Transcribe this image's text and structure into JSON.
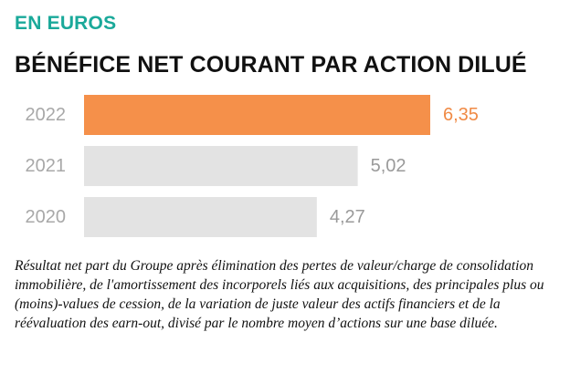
{
  "header": {
    "unit_label": "EN EUROS",
    "title": "BÉNÉFICE NET COURANT PAR ACTION DILUÉ"
  },
  "chart_data": {
    "type": "bar",
    "orientation": "horizontal",
    "title": "BÉNÉFICE NET COURANT PAR ACTION DILUÉ",
    "subtitle": "EN EUROS",
    "categories": [
      "2022",
      "2021",
      "2020"
    ],
    "values": [
      6.35,
      5.02,
      4.27
    ],
    "value_labels": [
      "6,35",
      "5,02",
      "4,27"
    ],
    "xlim": [
      0,
      6.35
    ],
    "grid": false,
    "legend": "none",
    "colors": {
      "highlight_bar": "#f5904a",
      "highlight_text": "#f08a45",
      "default_bar": "#e3e3e3",
      "default_text": "#9a9a9a"
    },
    "highlight_index": 0
  },
  "footnote": {
    "text": "Résultat net part du Groupe après élimination des pertes de valeur/charge de consolidation immobilière, de l'amortissement des incorporels liés aux acquisitions, des principales plus ou (moins)-values de cession, de la variation de juste valeur des actifs financiers et de la réévaluation des earn-out, divisé par le nombre moyen d’actions sur une base diluée."
  }
}
